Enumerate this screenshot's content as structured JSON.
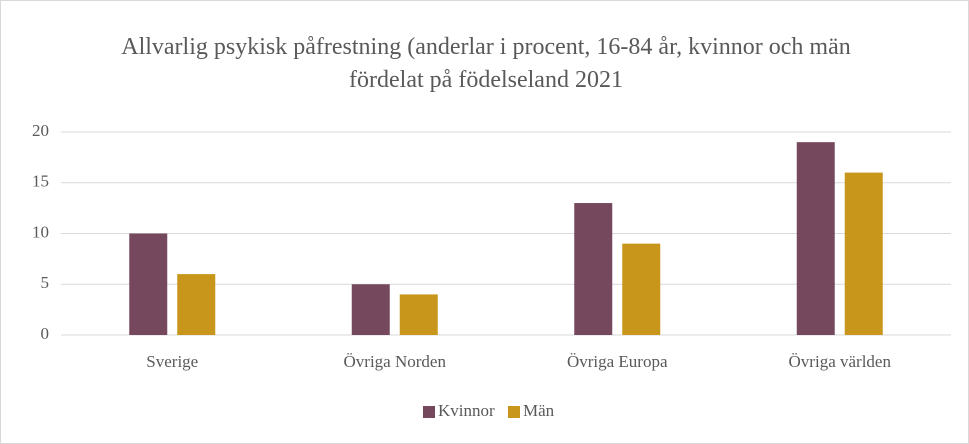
{
  "chart_data": {
    "type": "bar",
    "title": "Allvarlig psykisk påfrestning (anderlar i procent, 16-84 år, kvinnor och män fördelat på födelseland 2021",
    "categories": [
      "Sverige",
      "Övriga Norden",
      "Övriga Europa",
      "Övriga världen"
    ],
    "series": [
      {
        "name": "Kvinnor",
        "color": "#76485e",
        "values": [
          10,
          5,
          13,
          19
        ]
      },
      {
        "name": "Män",
        "color": "#c8961a",
        "values": [
          6,
          4,
          9,
          16
        ]
      }
    ],
    "ylim": [
      0,
      20
    ],
    "yticks": [
      0,
      5,
      10,
      15,
      20
    ],
    "grid": true,
    "legend": "bottom"
  }
}
